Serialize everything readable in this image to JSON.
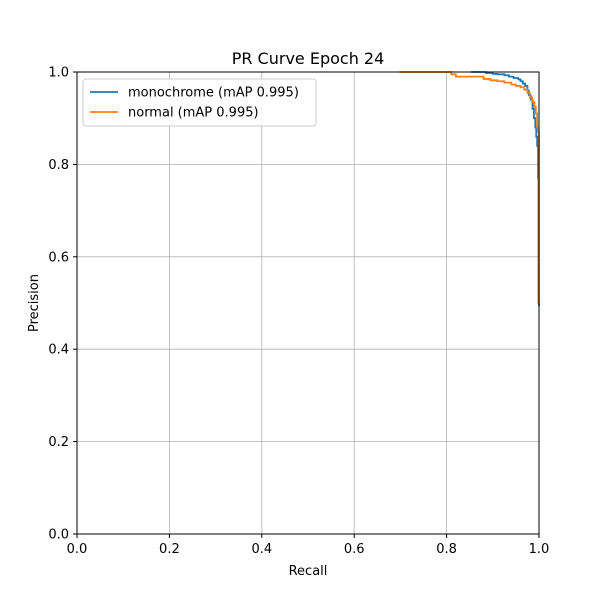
{
  "chart_data": {
    "type": "line",
    "title": "PR Curve Epoch 24",
    "xlabel": "Recall",
    "ylabel": "Precision",
    "xlim": [
      0.0,
      1.0
    ],
    "ylim": [
      0.0,
      1.0
    ],
    "grid": true,
    "legend_position": "upper-left",
    "x_ticks": [
      0.0,
      0.2,
      0.4,
      0.6,
      0.8,
      1.0
    ],
    "y_ticks": [
      0.0,
      0.2,
      0.4,
      0.6,
      0.8,
      1.0
    ],
    "x_tick_labels": [
      "0.0",
      "0.2",
      "0.4",
      "0.6",
      "0.8",
      "1.0"
    ],
    "y_tick_labels": [
      "0.0",
      "0.2",
      "0.4",
      "0.6",
      "0.8",
      "1.0"
    ],
    "series": [
      {
        "name": "monochrome (mAP 0.995)",
        "color": "#1f77b4",
        "step": true,
        "x": [
          0.855,
          0.885,
          0.9,
          0.91,
          0.925,
          0.935,
          0.945,
          0.955,
          0.96,
          0.965,
          0.97,
          0.975,
          0.978,
          0.982,
          0.986,
          0.989,
          0.992,
          0.994,
          0.996,
          0.998,
          0.999,
          1.0
        ],
        "y": [
          1.0,
          0.998,
          0.996,
          0.995,
          0.993,
          0.99,
          0.987,
          0.984,
          0.98,
          0.975,
          0.97,
          0.96,
          0.95,
          0.94,
          0.92,
          0.9,
          0.88,
          0.86,
          0.84,
          0.77,
          0.5,
          0.495
        ]
      },
      {
        "name": "normal (mAP 0.995)",
        "color": "#ff7f0e",
        "step": true,
        "x": [
          0.7,
          0.81,
          0.82,
          0.88,
          0.895,
          0.91,
          0.925,
          0.94,
          0.95,
          0.96,
          0.968,
          0.975,
          0.98,
          0.985,
          0.99,
          0.993,
          0.996,
          0.998,
          1.0
        ],
        "y": [
          1.0,
          0.995,
          0.99,
          0.985,
          0.982,
          0.98,
          0.977,
          0.973,
          0.97,
          0.967,
          0.962,
          0.955,
          0.945,
          0.935,
          0.925,
          0.91,
          0.88,
          0.87,
          0.5
        ]
      }
    ]
  }
}
